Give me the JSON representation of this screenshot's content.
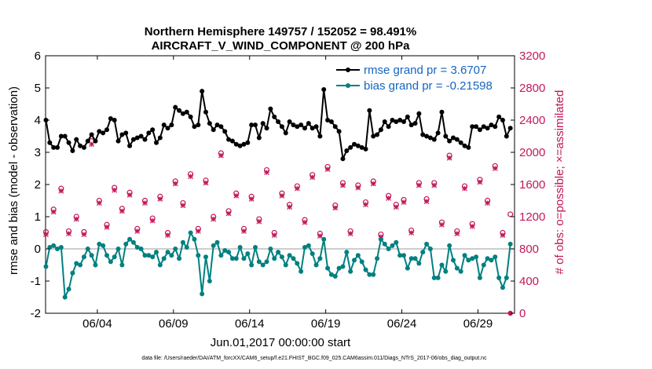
{
  "chart_data": {
    "type": "line",
    "title_line1": "Northern Hemisphere 149757 / 152052 = 98.491%",
    "title_line2": "AIRCRAFT_V_WIND_COMPONENT @ 200 hPa",
    "xlabel": "Jun.01,2017 00:00:00 start",
    "ylabel": "rmse and bias (model - observation)",
    "y2label": "# of obs: o=possible; ×=assimilated",
    "xlim": [
      0.6,
      31.4
    ],
    "ylim": [
      -2,
      6
    ],
    "y2lim": [
      0,
      3200
    ],
    "x_ticks": [
      {
        "value": 4,
        "label": "06/04"
      },
      {
        "value": 9,
        "label": "06/09"
      },
      {
        "value": 14,
        "label": "06/14"
      },
      {
        "value": 19,
        "label": "06/19"
      },
      {
        "value": 24,
        "label": "06/24"
      },
      {
        "value": 29,
        "label": "06/29"
      }
    ],
    "y_ticks": [
      "-2",
      "-1",
      "0",
      "1",
      "2",
      "3",
      "4",
      "5",
      "6"
    ],
    "y2_ticks": [
      "0",
      "400",
      "800",
      "1200",
      "1600",
      "2000",
      "2400",
      "2800",
      "3200"
    ],
    "legend": [
      "rmse grand pr = 3.6707",
      "bias grand pr = -0.21598"
    ],
    "series": [
      {
        "name": "rmse",
        "color": "#000000",
        "x": [
          0.625,
          0.875,
          1.125,
          1.375,
          1.625,
          1.875,
          2.125,
          2.375,
          2.625,
          2.875,
          3.125,
          3.375,
          3.625,
          3.875,
          4.125,
          4.375,
          4.625,
          4.875,
          5.125,
          5.375,
          5.625,
          5.875,
          6.125,
          6.375,
          6.625,
          6.875,
          7.125,
          7.375,
          7.625,
          7.875,
          8.125,
          8.375,
          8.625,
          8.875,
          9.125,
          9.375,
          9.625,
          9.875,
          10.125,
          10.375,
          10.625,
          10.875,
          11.125,
          11.375,
          11.625,
          11.875,
          12.125,
          12.375,
          12.625,
          12.875,
          13.125,
          13.375,
          13.625,
          13.875,
          14.125,
          14.375,
          14.625,
          14.875,
          15.125,
          15.375,
          15.625,
          15.875,
          16.125,
          16.375,
          16.625,
          16.875,
          17.125,
          17.375,
          17.625,
          17.875,
          18.125,
          18.375,
          18.625,
          18.875,
          19.125,
          19.375,
          19.625,
          19.875,
          20.125,
          20.375,
          20.625,
          20.875,
          21.125,
          21.375,
          21.625,
          21.875,
          22.125,
          22.375,
          22.625,
          22.875,
          23.125,
          23.375,
          23.625,
          23.875,
          24.125,
          24.375,
          24.625,
          24.875,
          25.125,
          25.375,
          25.625,
          25.875,
          26.125,
          26.375,
          26.625,
          26.875,
          27.125,
          27.375,
          27.625,
          27.875,
          28.125,
          28.375,
          28.625,
          28.875,
          29.125,
          29.375,
          29.625,
          29.875,
          30.125,
          30.375,
          30.625,
          30.875,
          31.125
        ],
        "y": [
          4.0,
          3.3,
          3.15,
          3.15,
          3.5,
          3.5,
          3.3,
          3.05,
          3.4,
          3.2,
          3.15,
          3.35,
          3.55,
          3.35,
          3.65,
          3.6,
          3.7,
          4.05,
          4.0,
          3.35,
          3.55,
          3.6,
          3.2,
          3.4,
          3.45,
          3.5,
          3.4,
          3.6,
          3.7,
          3.3,
          3.45,
          3.85,
          3.75,
          3.85,
          4.4,
          4.3,
          4.2,
          4.25,
          4.1,
          3.8,
          3.85,
          4.9,
          4.25,
          3.9,
          3.7,
          3.85,
          3.8,
          3.65,
          3.4,
          3.35,
          3.25,
          3.2,
          3.25,
          3.3,
          3.85,
          3.85,
          3.45,
          3.9,
          3.75,
          4.35,
          4.1,
          3.95,
          3.8,
          3.6,
          3.95,
          3.85,
          3.8,
          3.85,
          3.75,
          3.9,
          3.75,
          3.8,
          3.5,
          4.95,
          4.0,
          3.95,
          3.8,
          3.65,
          2.8,
          3.05,
          3.15,
          3.25,
          3.2,
          3.15,
          3.1,
          4.3,
          3.5,
          3.55,
          3.7,
          3.95,
          3.8,
          4.0,
          3.95,
          4.0,
          3.95,
          4.1,
          3.85,
          3.9,
          4.2,
          3.55,
          3.5,
          3.45,
          3.4,
          3.6,
          4.25,
          3.5,
          3.35,
          3.45,
          3.4,
          3.3,
          3.2,
          3.15,
          3.8,
          3.8,
          3.7,
          3.8,
          3.75,
          3.85,
          3.8,
          4.1,
          4.0,
          3.5,
          3.75
        ]
      },
      {
        "name": "bias",
        "color": "#008080",
        "x": [
          0.625,
          0.875,
          1.125,
          1.375,
          1.625,
          1.875,
          2.125,
          2.375,
          2.625,
          2.875,
          3.125,
          3.375,
          3.625,
          3.875,
          4.125,
          4.375,
          4.625,
          4.875,
          5.125,
          5.375,
          5.625,
          5.875,
          6.125,
          6.375,
          6.625,
          6.875,
          7.125,
          7.375,
          7.625,
          7.875,
          8.125,
          8.375,
          8.625,
          8.875,
          9.125,
          9.375,
          9.625,
          9.875,
          10.125,
          10.375,
          10.625,
          10.875,
          11.125,
          11.375,
          11.625,
          11.875,
          12.125,
          12.375,
          12.625,
          12.875,
          13.125,
          13.375,
          13.625,
          13.875,
          14.125,
          14.375,
          14.625,
          14.875,
          15.125,
          15.375,
          15.625,
          15.875,
          16.125,
          16.375,
          16.625,
          16.875,
          17.125,
          17.375,
          17.625,
          17.875,
          18.125,
          18.375,
          18.625,
          18.875,
          19.125,
          19.375,
          19.625,
          19.875,
          20.125,
          20.375,
          20.625,
          20.875,
          21.125,
          21.375,
          21.625,
          21.875,
          22.125,
          22.375,
          22.625,
          22.875,
          23.125,
          23.375,
          23.625,
          23.875,
          24.125,
          24.375,
          24.625,
          24.875,
          25.125,
          25.375,
          25.625,
          25.875,
          26.125,
          26.375,
          26.625,
          26.875,
          27.125,
          27.375,
          27.625,
          27.875,
          28.125,
          28.375,
          28.625,
          28.875,
          29.125,
          29.375,
          29.625,
          29.875,
          30.125,
          30.375,
          30.625,
          30.875,
          31.125
        ],
        "y": [
          -0.55,
          0.05,
          0.1,
          0.0,
          0.05,
          -1.5,
          -1.25,
          -0.75,
          -0.45,
          -0.5,
          -0.25,
          0.0,
          -0.2,
          -0.5,
          0.15,
          0.1,
          -0.2,
          -0.4,
          -0.25,
          0.0,
          -0.5,
          0.15,
          0.3,
          0.2,
          0.05,
          0.0,
          -0.2,
          -0.2,
          -0.25,
          -0.1,
          -0.5,
          -0.3,
          -0.1,
          -0.2,
          0.0,
          -0.3,
          0.2,
          0.05,
          0.5,
          0.3,
          -0.2,
          -1.4,
          -0.25,
          -1.0,
          0.1,
          0.2,
          -0.2,
          -0.05,
          -0.1,
          -0.3,
          -0.3,
          0.05,
          -0.3,
          -0.15,
          -0.5,
          0.05,
          -0.4,
          -0.5,
          -0.4,
          0.0,
          -0.3,
          -0.1,
          -0.25,
          -0.5,
          -0.2,
          -0.3,
          -0.45,
          -0.7,
          0.05,
          0.1,
          -0.15,
          -0.5,
          -0.3,
          0.3,
          -0.6,
          -0.8,
          -0.85,
          -0.6,
          -0.55,
          -0.1,
          -0.7,
          -0.35,
          -0.2,
          -0.4,
          -0.65,
          -0.8,
          -0.8,
          -0.3,
          0.3,
          0.15,
          0.0,
          0.1,
          0.2,
          -0.2,
          -0.2,
          -0.6,
          -0.3,
          -0.3,
          -0.45,
          -0.1,
          0.15,
          0.0,
          -0.9,
          -0.9,
          -0.5,
          -0.7,
          0.1,
          -0.35,
          -0.6,
          -0.7,
          -0.2,
          -0.35,
          -0.3,
          -0.25,
          -0.9,
          -0.5,
          -0.3,
          -0.35,
          -0.25,
          -0.9,
          -1.2,
          -0.9,
          0.15
        ]
      },
      {
        "name": "possible",
        "color": "#c2185b",
        "x": [
          0.625,
          1.125,
          1.625,
          2.125,
          2.625,
          3.125,
          3.625,
          4.125,
          4.625,
          5.125,
          5.625,
          6.125,
          6.625,
          7.125,
          7.625,
          8.125,
          8.625,
          9.125,
          9.625,
          10.125,
          10.625,
          11.125,
          11.625,
          12.125,
          12.625,
          13.125,
          13.625,
          14.125,
          14.625,
          15.125,
          15.625,
          16.125,
          16.625,
          17.125,
          17.625,
          18.125,
          18.625,
          19.125,
          19.625,
          20.125,
          20.625,
          21.125,
          21.625,
          22.125,
          22.625,
          23.125,
          23.625,
          24.125,
          24.625,
          25.125,
          25.625,
          26.125,
          26.625,
          27.125,
          27.625,
          28.125,
          28.625,
          29.125,
          29.625,
          30.125,
          30.625,
          31.125
        ],
        "y": [
          1010,
          1290,
          1550,
          1020,
          1200,
          1010,
          2140,
          1400,
          1100,
          1560,
          1300,
          1500,
          1050,
          1400,
          1180,
          1450,
          1000,
          1640,
          1370,
          1730,
          1050,
          1650,
          1200,
          1990,
          1270,
          1490,
          1050,
          1450,
          1170,
          1780,
          1000,
          1490,
          1350,
          1580,
          1160,
          1720,
          990,
          1820,
          1340,
          1620,
          1020,
          1590,
          1380,
          1640,
          980,
          1460,
          1350,
          1410,
          1030,
          1620,
          1420,
          1620,
          1130,
          1960,
          1020,
          1580,
          1110,
          1660,
          1400,
          1830,
          1000,
          1230
        ]
      },
      {
        "name": "assimilated",
        "color": "#c2185b",
        "x": [
          0.625,
          1.125,
          1.625,
          2.125,
          2.625,
          3.125,
          3.625,
          4.125,
          4.625,
          5.125,
          5.625,
          6.125,
          6.625,
          7.125,
          7.625,
          8.125,
          8.625,
          9.125,
          9.625,
          10.125,
          10.625,
          11.125,
          11.625,
          12.125,
          12.625,
          13.125,
          13.625,
          14.125,
          14.625,
          15.125,
          15.625,
          16.125,
          16.625,
          17.125,
          17.625,
          18.125,
          18.625,
          19.125,
          19.625,
          20.125,
          20.625,
          21.125,
          21.625,
          22.125,
          22.625,
          23.125,
          23.625,
          24.125,
          24.625,
          25.125,
          25.625,
          26.125,
          26.625,
          27.125,
          27.625,
          28.125,
          28.625,
          29.125,
          29.625,
          30.125,
          30.625,
          31.125
        ],
        "y": [
          980,
          1260,
          1520,
          990,
          1170,
          980,
          2100,
          1370,
          1070,
          1530,
          1270,
          1470,
          1020,
          1370,
          1150,
          1420,
          970,
          1610,
          1340,
          1700,
          1020,
          1620,
          1170,
          1960,
          1240,
          1460,
          1020,
          1420,
          1140,
          1750,
          970,
          1460,
          1320,
          1550,
          1130,
          1690,
          960,
          1790,
          1310,
          1590,
          990,
          1560,
          1350,
          1610,
          950,
          1430,
          1320,
          1380,
          1000,
          1590,
          1390,
          1590,
          1100,
          1930,
          990,
          1550,
          1080,
          1630,
          1370,
          1800,
          970,
          0
        ]
      }
    ]
  },
  "footer": "data file: /Users/raeder/DAI/ATM_forcXX/CAM6_setup/f.e21.FHIST_BGC.f09_025.CAM6assim.011/Diags_NTrS_2017-06/obs_diag_output.nc"
}
